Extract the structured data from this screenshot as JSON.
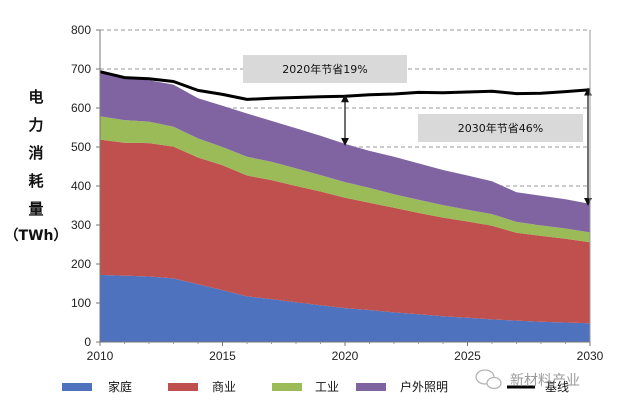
{
  "chart_data": {
    "type": "area",
    "ylabel_chars": [
      "电",
      "力",
      "消",
      "耗",
      "量",
      "（TWh）"
    ],
    "x": [
      2010,
      2011,
      2012,
      2013,
      2014,
      2015,
      2016,
      2017,
      2018,
      2019,
      2020,
      2021,
      2022,
      2023,
      2024,
      2025,
      2026,
      2027,
      2028,
      2029,
      2030
    ],
    "xticks": [
      2010,
      2015,
      2020,
      2025,
      2030
    ],
    "xlim": [
      2010,
      2030
    ],
    "ylim": [
      0,
      800
    ],
    "yticks": [
      0,
      100,
      200,
      300,
      400,
      500,
      600,
      700,
      800
    ],
    "stack_order": "bottom-to-top",
    "series": [
      {
        "name": "家庭",
        "color": "#4f72be",
        "values": [
          172,
          170,
          168,
          163,
          148,
          133,
          117,
          110,
          102,
          94,
          87,
          82,
          76,
          71,
          66,
          62,
          58,
          55,
          52,
          50,
          48
        ]
      },
      {
        "name": "商业",
        "color": "#c0504d",
        "values": [
          347,
          341,
          342,
          338,
          325,
          320,
          310,
          305,
          298,
          292,
          283,
          275,
          268,
          260,
          253,
          247,
          240,
          225,
          220,
          215,
          208
        ]
      },
      {
        "name": "工业",
        "color": "#9bbb59",
        "values": [
          60,
          58,
          55,
          51,
          49,
          47,
          48,
          47,
          45,
          42,
          40,
          38,
          35,
          34,
          32,
          30,
          30,
          28,
          27,
          26,
          25
        ]
      },
      {
        "name": "户外照明",
        "color": "#8064a2",
        "values": [
          116,
          108,
          106,
          108,
          103,
          106,
          111,
          105,
          103,
          101,
          98,
          95,
          96,
          93,
          90,
          88,
          84,
          76,
          76,
          75,
          73
        ]
      }
    ],
    "baseline": {
      "name": "基线",
      "color": "#000000",
      "values": [
        693,
        678,
        675,
        668,
        645,
        635,
        622,
        625,
        627,
        629,
        630,
        634,
        636,
        640,
        639,
        641,
        643,
        637,
        638,
        642,
        647
      ]
    },
    "annotations": [
      {
        "text": "2020年节省19%",
        "arrow_x": 2020,
        "from": 508,
        "to": 630
      },
      {
        "text": "2030年节省46%",
        "arrow_x": 2030,
        "from": 354,
        "to": 647
      }
    ],
    "grid": "horizontal-dashed",
    "legend": "bottom"
  },
  "watermark": "新材料产业"
}
